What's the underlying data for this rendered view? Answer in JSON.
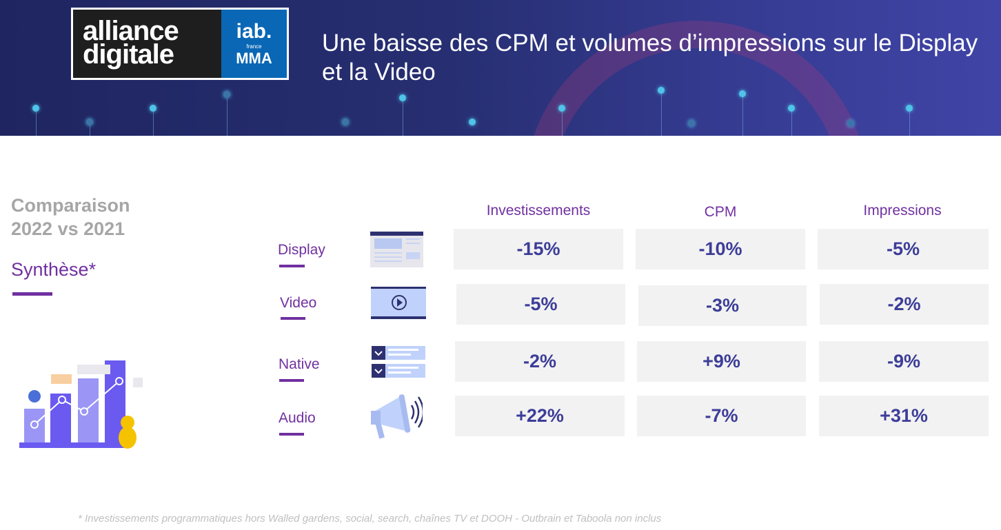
{
  "header": {
    "logo_left": "alliance digitale",
    "logo_right_top": "iab.",
    "logo_right_small": "france",
    "logo_right_bottom": "MMA",
    "title": "Une baisse des CPM et volumes d’impressions sur le Display et la Video"
  },
  "sidebar": {
    "heading_line1": "Comparaison",
    "heading_line2": "2022 vs 2021",
    "subheading": "Synthèse*"
  },
  "table": {
    "columns": [
      "Investissements",
      "CPM",
      "Impressions"
    ],
    "rows": [
      {
        "label": "Display",
        "icon": "display-browser-icon",
        "values": [
          "-15%",
          "-10%",
          "-5%"
        ]
      },
      {
        "label": "Video",
        "icon": "video-play-icon",
        "values": [
          "-5%",
          "-3%",
          "-2%"
        ]
      },
      {
        "label": "Native",
        "icon": "native-list-icon",
        "values": [
          "-2%",
          "+9%",
          "-9%"
        ]
      },
      {
        "label": "Audio",
        "icon": "megaphone-icon",
        "values": [
          "+22%",
          "-7%",
          "+31%"
        ]
      }
    ]
  },
  "footnote": "* Investissements programmatiques hors Walled gardens, social, search, chaînes TV et DOOH - Outbrain et Taboola non inclus",
  "colors": {
    "purple": "#7030a0",
    "value": "#3d3d99",
    "cell": "#f2f2f2"
  }
}
